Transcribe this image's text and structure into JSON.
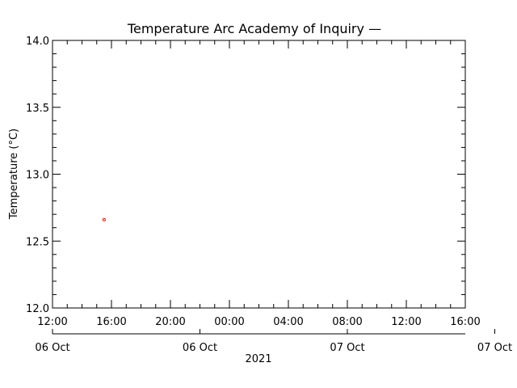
{
  "chart_data": {
    "type": "scatter",
    "title": "Temperature Arc Academy of Inquiry —",
    "ylabel": "Temperature (°C)",
    "year_label": "2021",
    "x_range": [
      "2021-10-06T12:00",
      "2021-10-07T16:00"
    ],
    "ylim": [
      12.0,
      14.0
    ],
    "y_ticks": [
      "12.0",
      "12.5",
      "13.0",
      "13.5",
      "14.0"
    ],
    "time_ticks": [
      "12:00",
      "16:00",
      "20:00",
      "00:00",
      "04:00",
      "08:00",
      "12:00",
      "16:00"
    ],
    "date_ticks": [
      "06 Oct",
      "06 Oct",
      "07 Oct",
      "07 Oct",
      "07 Oct"
    ],
    "grid": false,
    "series": [
      {
        "color": "#ff0000",
        "points": [
          {
            "x": "2021-10-06T15:30",
            "y": 12.66
          }
        ]
      }
    ]
  }
}
